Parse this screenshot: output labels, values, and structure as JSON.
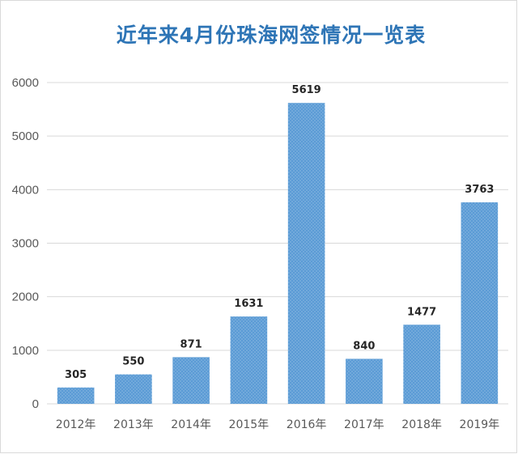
{
  "title": "近年来4月份珠海网签情况一览表",
  "colors": {
    "bar": "#5b9bd5",
    "title": "#2e75b6",
    "grid": "#d9d9d9",
    "axis_text": "#595959",
    "label_text": "#262626"
  },
  "chart_data": {
    "type": "bar",
    "title": "近年来4月份珠海网签情况一览表",
    "categories": [
      "2012年",
      "2013年",
      "2014年",
      "2015年",
      "2016年",
      "2017年",
      "2018年",
      "2019年"
    ],
    "values": [
      305,
      550,
      871,
      1631,
      5619,
      840,
      1477,
      3763
    ],
    "data_labels": [
      "305",
      "550",
      "871",
      "1631",
      "5619",
      "840",
      "1477",
      "3763"
    ],
    "xlabel": "",
    "ylabel": "",
    "ylim": [
      0,
      6000
    ],
    "yticks": [
      0,
      1000,
      2000,
      3000,
      4000,
      5000,
      6000
    ],
    "ytick_labels": [
      "0",
      "1000",
      "2000",
      "3000",
      "4000",
      "5000",
      "6000"
    ],
    "grid": true,
    "legend": "none"
  }
}
